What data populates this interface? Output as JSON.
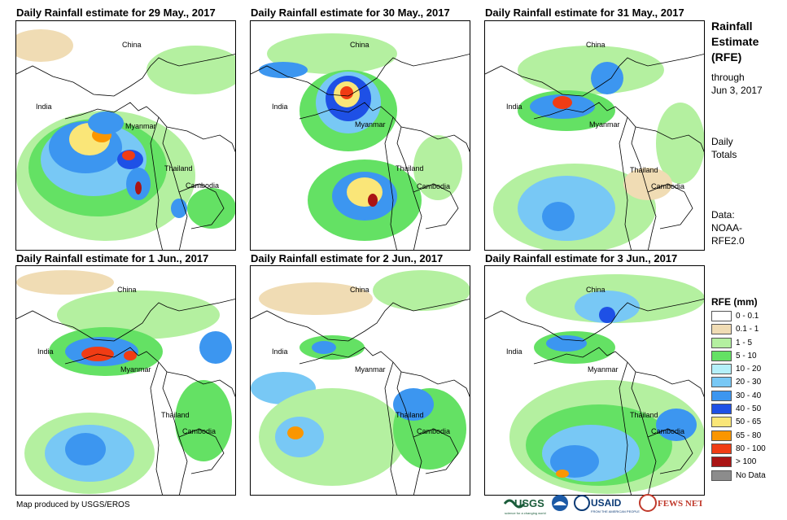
{
  "panels": [
    {
      "title": "Daily Rainfall estimate for 29 May., 2017"
    },
    {
      "title": "Daily Rainfall estimate for 30 May., 2017"
    },
    {
      "title": "Daily Rainfall estimate for 31 May., 2017"
    },
    {
      "title": "Daily Rainfall estimate for 1 Jun., 2017"
    },
    {
      "title": "Daily Rainfall estimate for 2 Jun., 2017"
    },
    {
      "title": "Daily Rainfall estimate for 3 Jun., 2017"
    }
  ],
  "map_labels": {
    "china": "China",
    "india": "India",
    "myanmar": "Myanmar",
    "thailand": "Thailand",
    "cambodia": "Cambodia"
  },
  "sidebar": {
    "title_line1": "Rainfall",
    "title_line2": "Estimate",
    "title_line3": "(RFE)",
    "through": "through",
    "date": "Jun 3, 2017",
    "daily": "Daily",
    "totals": "Totals",
    "data_label": "Data:",
    "source1": "NOAA-",
    "source2": "RFE2.0"
  },
  "legend": {
    "title": "RFE (mm)",
    "items": [
      {
        "label": "0 - 0.1",
        "color": "#ffffff"
      },
      {
        "label": "0.1 - 1",
        "color": "#f0dcb4"
      },
      {
        "label": "1 - 5",
        "color": "#b4f0a0"
      },
      {
        "label": "5 - 10",
        "color": "#64e164"
      },
      {
        "label": "10 - 20",
        "color": "#b4f0fa"
      },
      {
        "label": "20 - 30",
        "color": "#78c8f5"
      },
      {
        "label": "30 - 40",
        "color": "#3c96f0"
      },
      {
        "label": "40 - 50",
        "color": "#1e50e6"
      },
      {
        "label": "50 - 65",
        "color": "#fae678"
      },
      {
        "label": "65 - 80",
        "color": "#fa9600"
      },
      {
        "label": "80 - 100",
        "color": "#f03c14"
      },
      {
        "label": "> 100",
        "color": "#aa1414"
      },
      {
        "label": "No Data",
        "color": "#8c8c8c"
      }
    ]
  },
  "footer": {
    "credit": "Map produced by USGS/EROS"
  },
  "logos": {
    "usgs": "USGS",
    "usgs_tagline": "science for a changing world",
    "usaid": "USAID",
    "usaid_tagline": "FROM THE AMERICAN PEOPLE",
    "fews": "FEWS NET"
  }
}
